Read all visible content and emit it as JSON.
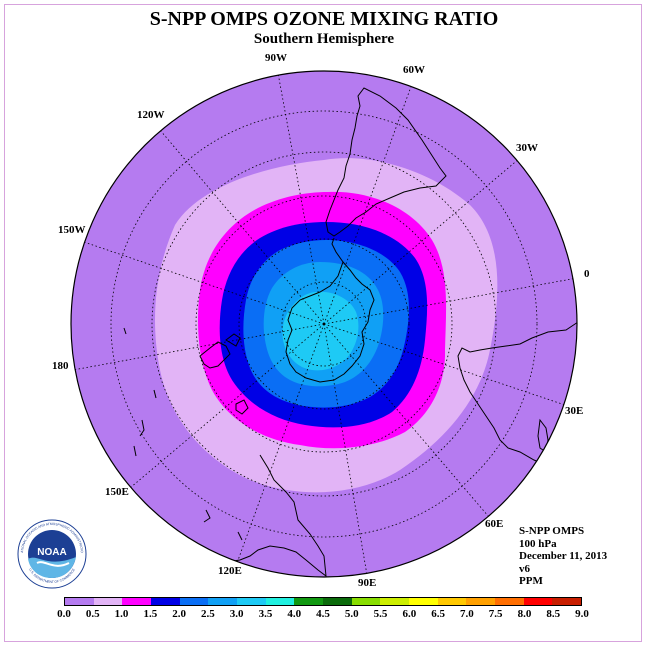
{
  "title": "S-NPP OMPS OZONE MIXING RATIO",
  "subtitle": "Southern Hemisphere",
  "longitude_labels": [
    "90W",
    "60W",
    "30W",
    "0",
    "30E",
    "60E",
    "90E",
    "120E",
    "150E",
    "180",
    "150W",
    "120W"
  ],
  "info": {
    "instrument": "S-NPP OMPS",
    "level": "100 hPa",
    "date": "December 11, 2013",
    "version": "v6",
    "units": "PPM"
  },
  "logo": {
    "text": "NOAA",
    "ring_text": "NATIONAL OCEANIC AND ATMOSPHERIC ADMINISTRATION",
    "ring_text_bottom": "U.S. DEPARTMENT OF COMMERCE"
  },
  "colorbar": {
    "ticks": [
      "0.0",
      "0.5",
      "1.0",
      "1.5",
      "2.0",
      "2.5",
      "3.0",
      "3.5",
      "4.0",
      "4.5",
      "5.0",
      "5.5",
      "6.0",
      "6.5",
      "7.0",
      "7.5",
      "8.0",
      "8.5",
      "9.0"
    ],
    "colors": [
      "#b57bf0",
      "#e2b4f6",
      "#ff00ff",
      "#0000e6",
      "#0a6ef5",
      "#10a0f5",
      "#1ecaf5",
      "#20f0e0",
      "#119911",
      "#0b6b0b",
      "#88dd00",
      "#ccee00",
      "#ffff00",
      "#ffc800",
      "#ffa000",
      "#ff6e00",
      "#ff0000",
      "#c81e00",
      "#8b5a3c"
    ]
  },
  "chart_data": {
    "type": "polar-map",
    "projection": "south polar stereographic",
    "field": "ozone mixing ratio",
    "units": "PPM",
    "pressure_level": "100 hPa",
    "date": "December 11, 2013",
    "grid": true,
    "contour_levels": [
      0.0,
      0.5,
      1.0,
      1.5,
      2.0,
      2.5,
      3.0
    ],
    "observed_range": [
      0.0,
      3.0
    ]
  }
}
